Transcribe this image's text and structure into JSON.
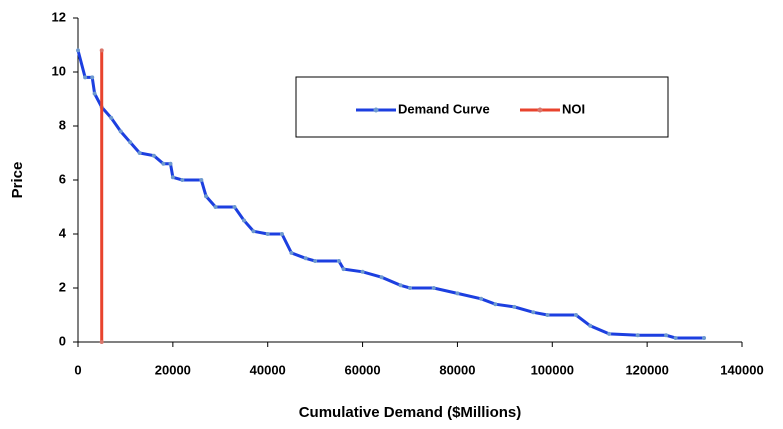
{
  "chart_data": {
    "type": "line",
    "xlabel": "Cumulative Demand ($Millions)",
    "ylabel": "Price",
    "xlim": [
      0,
      140000
    ],
    "xticks": [
      0,
      20000,
      40000,
      60000,
      80000,
      100000,
      120000,
      140000
    ],
    "ylim": [
      0,
      12
    ],
    "yticks": [
      0,
      2,
      4,
      6,
      8,
      10,
      12
    ],
    "grid": false,
    "legend": "upper right",
    "series": [
      {
        "name": "Demand Curve",
        "color": "#1c3fe0",
        "marker_color": "#6e9ad0",
        "x": [
          0,
          1500,
          3000,
          3500,
          5000,
          7000,
          9000,
          11000,
          13000,
          16000,
          18000,
          19500,
          20000,
          22000,
          26000,
          27000,
          29000,
          33000,
          35000,
          37000,
          40000,
          43000,
          45000,
          48000,
          50000,
          55000,
          56000,
          60000,
          64000,
          68000,
          70000,
          75000,
          80000,
          85000,
          88000,
          92000,
          96000,
          99000,
          105000,
          108000,
          112000,
          118000,
          124000,
          126000,
          132000
        ],
        "values": [
          10.8,
          9.8,
          9.8,
          9.2,
          8.7,
          8.3,
          7.8,
          7.4,
          7.0,
          6.9,
          6.6,
          6.6,
          6.1,
          6.0,
          6.0,
          5.4,
          5.0,
          5.0,
          4.5,
          4.1,
          4.0,
          4.0,
          3.3,
          3.1,
          3.0,
          3.0,
          2.7,
          2.6,
          2.4,
          2.1,
          2.0,
          2.0,
          1.8,
          1.6,
          1.4,
          1.3,
          1.1,
          1.0,
          1.0,
          0.6,
          0.3,
          0.25,
          0.25,
          0.15,
          0.15
        ]
      },
      {
        "name": "NOI",
        "color": "#e8432d",
        "marker_color": "#d9756a",
        "x": [
          5000,
          5000
        ],
        "values": [
          0,
          10.8
        ]
      }
    ]
  }
}
